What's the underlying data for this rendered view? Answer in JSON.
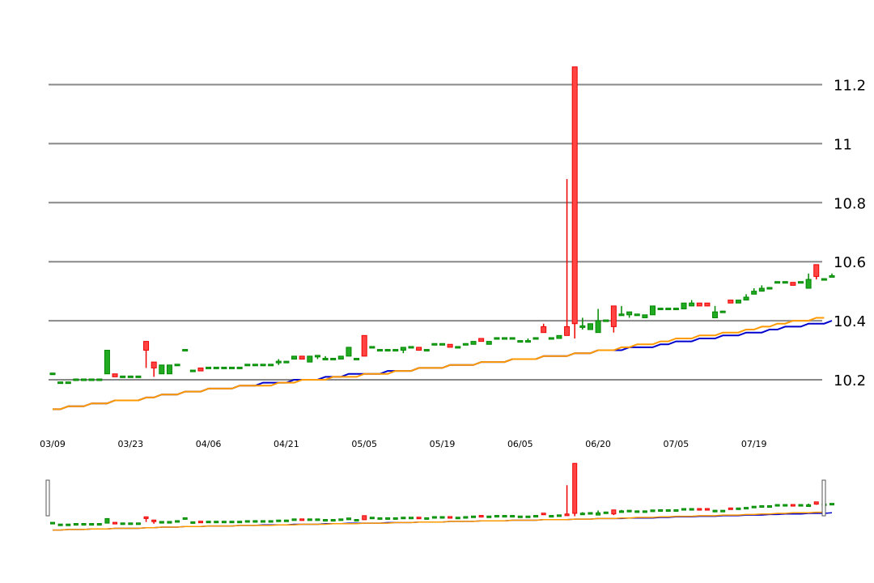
{
  "chart_data": {
    "type": "candlestick",
    "title": "",
    "xlabel": "",
    "ylabel": "",
    "ylim": [
      10.06,
      11.3
    ],
    "y_ticks": [
      "10.2",
      "10.4",
      "10.6",
      "10.8",
      "11",
      "11.2"
    ],
    "y_tick_values": [
      10.2,
      10.4,
      10.6,
      10.8,
      11.0,
      11.2
    ],
    "x_ticks": [
      {
        "label": "03/09",
        "index": 0
      },
      {
        "label": "03/23",
        "index": 10
      },
      {
        "label": "04/06",
        "index": 20
      },
      {
        "label": "04/21",
        "index": 30
      },
      {
        "label": "05/05",
        "index": 40
      },
      {
        "label": "05/19",
        "index": 50
      },
      {
        "label": "06/05",
        "index": 60
      },
      {
        "label": "06/20",
        "index": 70
      },
      {
        "label": "07/05",
        "index": 80
      },
      {
        "label": "07/19",
        "index": 90
      }
    ],
    "grid": true,
    "y_axis_side": "right",
    "candles_ohlc": [
      [
        10.22,
        10.22,
        10.22,
        10.22
      ],
      [
        10.19,
        10.19,
        10.19,
        10.19
      ],
      [
        10.19,
        10.19,
        10.19,
        10.19
      ],
      [
        10.2,
        10.2,
        10.2,
        10.2
      ],
      [
        10.2,
        10.2,
        10.2,
        10.2
      ],
      [
        10.2,
        10.2,
        10.2,
        10.2
      ],
      [
        10.2,
        10.2,
        10.2,
        10.2
      ],
      [
        10.22,
        10.3,
        10.22,
        10.3
      ],
      [
        10.22,
        10.22,
        10.21,
        10.21
      ],
      [
        10.21,
        10.21,
        10.21,
        10.21
      ],
      [
        10.21,
        10.21,
        10.21,
        10.21
      ],
      [
        10.21,
        10.21,
        10.21,
        10.21
      ],
      [
        10.33,
        10.33,
        10.24,
        10.3
      ],
      [
        10.26,
        10.26,
        10.21,
        10.24
      ],
      [
        10.22,
        10.25,
        10.22,
        10.25
      ],
      [
        10.22,
        10.25,
        10.22,
        10.25
      ],
      [
        10.25,
        10.25,
        10.25,
        10.25
      ],
      [
        10.3,
        10.3,
        10.3,
        10.3
      ],
      [
        10.23,
        10.23,
        10.23,
        10.23
      ],
      [
        10.24,
        10.24,
        10.23,
        10.23
      ],
      [
        10.24,
        10.24,
        10.24,
        10.24
      ],
      [
        10.24,
        10.24,
        10.24,
        10.24
      ],
      [
        10.24,
        10.24,
        10.24,
        10.24
      ],
      [
        10.24,
        10.24,
        10.24,
        10.24
      ],
      [
        10.24,
        10.24,
        10.24,
        10.24
      ],
      [
        10.25,
        10.25,
        10.25,
        10.25
      ],
      [
        10.25,
        10.25,
        10.25,
        10.25
      ],
      [
        10.25,
        10.25,
        10.25,
        10.25
      ],
      [
        10.25,
        10.25,
        10.25,
        10.25
      ],
      [
        10.26,
        10.27,
        10.25,
        10.26
      ],
      [
        10.26,
        10.26,
        10.26,
        10.26
      ],
      [
        10.27,
        10.28,
        10.27,
        10.28
      ],
      [
        10.28,
        10.28,
        10.27,
        10.27
      ],
      [
        10.26,
        10.28,
        10.26,
        10.28
      ],
      [
        10.28,
        10.28,
        10.27,
        10.28
      ],
      [
        10.27,
        10.28,
        10.27,
        10.27
      ],
      [
        10.27,
        10.27,
        10.27,
        10.27
      ],
      [
        10.27,
        10.28,
        10.27,
        10.28
      ],
      [
        10.28,
        10.31,
        10.28,
        10.31
      ],
      [
        10.27,
        10.27,
        10.27,
        10.27
      ],
      [
        10.35,
        10.35,
        10.28,
        10.28
      ],
      [
        10.31,
        10.31,
        10.31,
        10.31
      ],
      [
        10.3,
        10.3,
        10.3,
        10.3
      ],
      [
        10.3,
        10.3,
        10.3,
        10.3
      ],
      [
        10.3,
        10.3,
        10.3,
        10.3
      ],
      [
        10.3,
        10.31,
        10.29,
        10.31
      ],
      [
        10.31,
        10.31,
        10.31,
        10.31
      ],
      [
        10.31,
        10.31,
        10.3,
        10.3
      ],
      [
        10.3,
        10.3,
        10.3,
        10.3
      ],
      [
        10.32,
        10.32,
        10.32,
        10.32
      ],
      [
        10.32,
        10.32,
        10.32,
        10.32
      ],
      [
        10.32,
        10.32,
        10.31,
        10.31
      ],
      [
        10.31,
        10.31,
        10.31,
        10.31
      ],
      [
        10.32,
        10.32,
        10.32,
        10.32
      ],
      [
        10.32,
        10.33,
        10.32,
        10.33
      ],
      [
        10.34,
        10.34,
        10.33,
        10.33
      ],
      [
        10.32,
        10.33,
        10.32,
        10.33
      ],
      [
        10.34,
        10.34,
        10.34,
        10.34
      ],
      [
        10.34,
        10.34,
        10.34,
        10.34
      ],
      [
        10.34,
        10.34,
        10.34,
        10.34
      ],
      [
        10.33,
        10.33,
        10.33,
        10.33
      ],
      [
        10.33,
        10.34,
        10.33,
        10.33
      ],
      [
        10.34,
        10.34,
        10.34,
        10.34
      ],
      [
        10.38,
        10.39,
        10.36,
        10.36
      ],
      [
        10.34,
        10.34,
        10.34,
        10.34
      ],
      [
        10.34,
        10.35,
        10.34,
        10.35
      ],
      [
        10.38,
        10.88,
        10.35,
        10.35
      ],
      [
        11.26,
        11.26,
        10.34,
        10.39
      ],
      [
        10.38,
        10.41,
        10.37,
        10.38
      ],
      [
        10.37,
        10.39,
        10.37,
        10.39
      ],
      [
        10.36,
        10.44,
        10.36,
        10.4
      ],
      [
        10.4,
        10.4,
        10.4,
        10.4
      ],
      [
        10.45,
        10.45,
        10.36,
        10.38
      ],
      [
        10.42,
        10.45,
        10.42,
        10.42
      ],
      [
        10.42,
        10.43,
        10.41,
        10.43
      ],
      [
        10.42,
        10.42,
        10.42,
        10.42
      ],
      [
        10.41,
        10.42,
        10.41,
        10.42
      ],
      [
        10.42,
        10.45,
        10.42,
        10.45
      ],
      [
        10.44,
        10.44,
        10.44,
        10.44
      ],
      [
        10.44,
        10.44,
        10.44,
        10.44
      ],
      [
        10.44,
        10.44,
        10.44,
        10.44
      ],
      [
        10.44,
        10.46,
        10.44,
        10.46
      ],
      [
        10.45,
        10.47,
        10.45,
        10.46
      ],
      [
        10.46,
        10.46,
        10.45,
        10.45
      ],
      [
        10.46,
        10.46,
        10.45,
        10.45
      ],
      [
        10.41,
        10.45,
        10.41,
        10.43
      ],
      [
        10.43,
        10.43,
        10.43,
        10.43
      ],
      [
        10.47,
        10.47,
        10.46,
        10.46
      ],
      [
        10.46,
        10.47,
        10.46,
        10.47
      ],
      [
        10.47,
        10.49,
        10.47,
        10.48
      ],
      [
        10.49,
        10.51,
        10.49,
        10.5
      ],
      [
        10.5,
        10.52,
        10.5,
        10.51
      ],
      [
        10.51,
        10.51,
        10.51,
        10.51
      ],
      [
        10.53,
        10.53,
        10.53,
        10.53
      ],
      [
        10.53,
        10.53,
        10.53,
        10.53
      ],
      [
        10.53,
        10.53,
        10.52,
        10.52
      ],
      [
        10.53,
        10.53,
        10.53,
        10.53
      ],
      [
        10.51,
        10.56,
        10.51,
        10.54
      ],
      [
        10.59,
        10.59,
        10.54,
        10.55
      ],
      [
        10.54,
        10.54,
        10.54,
        10.54
      ],
      [
        10.55,
        10.56,
        10.55,
        10.55
      ]
    ],
    "series": [
      {
        "color": "#0000cc",
        "values": [
          10.1,
          10.1,
          10.11,
          10.11,
          10.11,
          10.12,
          10.12,
          10.12,
          10.13,
          10.13,
          10.13,
          10.13,
          10.14,
          10.14,
          10.15,
          10.15,
          10.15,
          10.16,
          10.16,
          10.16,
          10.17,
          10.17,
          10.17,
          10.17,
          10.18,
          10.18,
          10.18,
          10.19,
          10.19,
          10.19,
          10.19,
          10.2,
          10.2,
          10.2,
          10.2,
          10.21,
          10.21,
          10.21,
          10.22,
          10.22,
          10.22,
          10.22,
          10.22,
          10.23,
          10.23,
          10.23,
          10.23,
          10.24,
          10.24,
          10.24,
          10.24,
          10.25,
          10.25,
          10.25,
          10.25,
          10.26,
          10.26,
          10.26,
          10.26,
          10.27,
          10.27,
          10.27,
          10.27,
          10.28,
          10.28,
          10.28,
          10.28,
          10.29,
          10.29,
          10.29,
          10.3,
          10.3,
          10.3,
          10.3,
          10.31,
          10.31,
          10.31,
          10.31,
          10.32,
          10.32,
          10.33,
          10.33,
          10.33,
          10.34,
          10.34,
          10.34,
          10.35,
          10.35,
          10.35,
          10.36,
          10.36,
          10.36,
          10.37,
          10.37,
          10.38,
          10.38,
          10.38,
          10.39,
          10.39,
          10.39,
          10.4
        ]
      },
      {
        "color": "#ff9900",
        "values": [
          10.1,
          10.1,
          10.11,
          10.11,
          10.11,
          10.12,
          10.12,
          10.12,
          10.13,
          10.13,
          10.13,
          10.13,
          10.14,
          10.14,
          10.15,
          10.15,
          10.15,
          10.16,
          10.16,
          10.16,
          10.17,
          10.17,
          10.17,
          10.17,
          10.18,
          10.18,
          10.18,
          10.18,
          10.18,
          10.19,
          10.19,
          10.19,
          10.2,
          10.2,
          10.2,
          10.2,
          10.21,
          10.21,
          10.21,
          10.21,
          10.22,
          10.22,
          10.22,
          10.22,
          10.23,
          10.23,
          10.23,
          10.24,
          10.24,
          10.24,
          10.24,
          10.25,
          10.25,
          10.25,
          10.25,
          10.26,
          10.26,
          10.26,
          10.26,
          10.27,
          10.27,
          10.27,
          10.27,
          10.28,
          10.28,
          10.28,
          10.28,
          10.29,
          10.29,
          10.29,
          10.3,
          10.3,
          10.3,
          10.31,
          10.31,
          10.32,
          10.32,
          10.32,
          10.33,
          10.33,
          10.34,
          10.34,
          10.34,
          10.35,
          10.35,
          10.35,
          10.36,
          10.36,
          10.36,
          10.37,
          10.37,
          10.38,
          10.38,
          10.39,
          10.39,
          10.4,
          10.4,
          10.4,
          10.41,
          10.41
        ]
      }
    ],
    "colors": {
      "up": "#008800",
      "down": "#ee0000",
      "up_fill": "#22aa22",
      "down_fill": "#ff4444",
      "grid": "#888888"
    }
  }
}
